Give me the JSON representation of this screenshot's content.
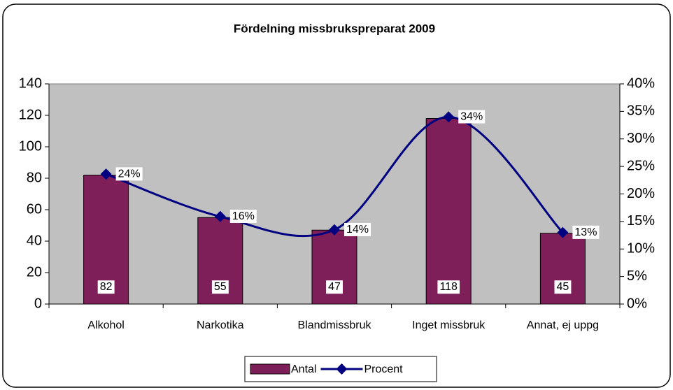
{
  "chart_data": {
    "type": "bar_line",
    "title": "Fördelning missbrukspreparat 2009",
    "categories": [
      "Alkohol",
      "Narkotika",
      "Blandmissbruk",
      "Inget missbruk",
      "Annat, ej uppg"
    ],
    "series": [
      {
        "name": "Antal",
        "type": "bar",
        "color": "#7f1f5a",
        "values": [
          82,
          55,
          47,
          118,
          45
        ]
      },
      {
        "name": "Procent",
        "type": "line",
        "axis": "y2",
        "color": "#000080",
        "values": [
          23.6,
          15.9,
          13.5,
          34.0,
          13.0
        ],
        "value_labels": [
          "24%",
          "16%",
          "14%",
          "34%",
          "13%"
        ]
      }
    ],
    "ylim": [
      0,
      140
    ],
    "yticks": [
      0,
      20,
      40,
      60,
      80,
      100,
      120,
      140
    ],
    "y2lim": [
      0,
      40
    ],
    "y2ticks": [
      {
        "value": 0,
        "label": "0%"
      },
      {
        "value": 5,
        "label": "5%"
      },
      {
        "value": 10,
        "label": "10%"
      },
      {
        "value": 15,
        "label": "15%"
      },
      {
        "value": 20,
        "label": "20%"
      },
      {
        "value": 25,
        "label": "25%"
      },
      {
        "value": 30,
        "label": "30%"
      },
      {
        "value": 35,
        "label": "35%"
      },
      {
        "value": 40,
        "label": "40%"
      }
    ],
    "legend": "bottom",
    "plot_background": "#c0c0c0"
  }
}
